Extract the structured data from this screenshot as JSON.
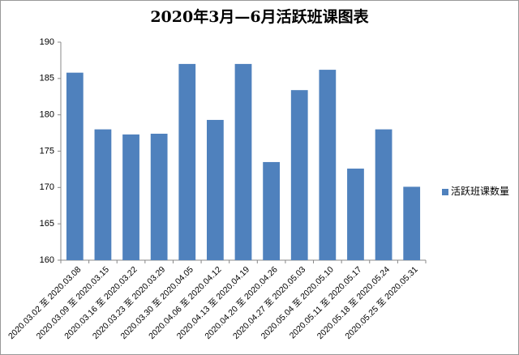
{
  "chart_data": {
    "type": "bar",
    "title": "2020年3月—6月活跃班课图表",
    "categories": [
      "2020.03.02 至 2020.03.08",
      "2020.03.09 至 2020.03.15",
      "2020.03.16 至 2020.03.22",
      "2020.03.23 至 2020.03.29",
      "2020.03.30 至 2020.04.05",
      "2020.04.06 至 2020.04.12",
      "2020.04.13 至 2020.04.19",
      "2020.04.20 至 2020.04.26",
      "2020.04.27 至 2020.05.03",
      "2020.05.04 至 2020.05.10",
      "2020.05.11 至 2020.05.17",
      "2020.05.18 至 2020.05.24",
      "2020.05.25 至 2020.05.31"
    ],
    "series": [
      {
        "name": "活跃班课数量",
        "color": "#4f81bd",
        "values": [
          185.8,
          178,
          177.3,
          177.4,
          187,
          179.3,
          187,
          173.5,
          183.4,
          186.2,
          172.6,
          178,
          170.1
        ]
      }
    ],
    "ylim": [
      160,
      190
    ],
    "yticks": [
      160,
      165,
      170,
      175,
      180,
      185,
      190
    ],
    "grid": false,
    "legend": "right"
  }
}
